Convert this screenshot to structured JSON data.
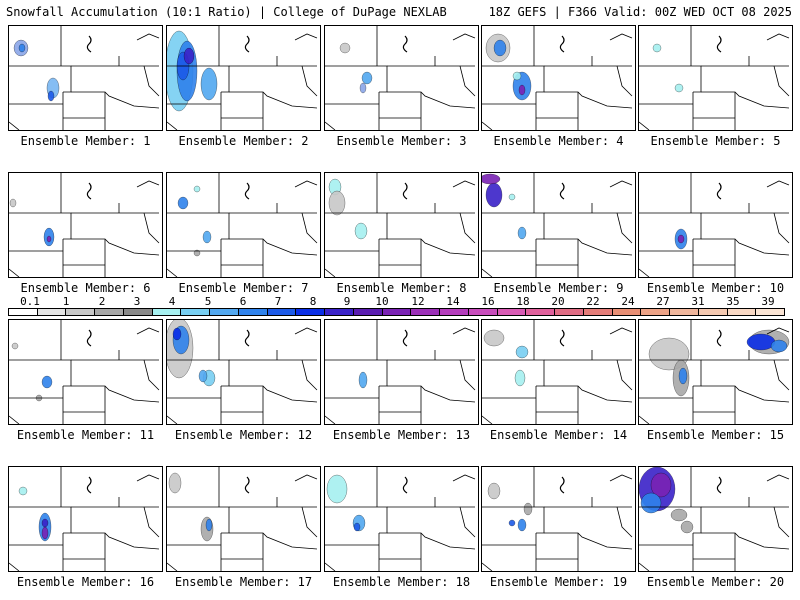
{
  "header": {
    "title": "Snowfall Accumulation (10:1 Ratio) | College of DuPage NEXLAB",
    "run_info": "18Z GEFS | F366 Valid: 00Z WED OCT 08 2025"
  },
  "colorbar": {
    "labels": [
      "0.1",
      "1",
      "2",
      "3",
      "4",
      "5",
      "6",
      "7",
      "8",
      "9",
      "10",
      "12",
      "14",
      "16",
      "18",
      "20",
      "22",
      "24",
      "27",
      "31",
      "35",
      "39"
    ],
    "colors": [
      "#ffffff",
      "#e4e4e4",
      "#c8c8c8",
      "#a8a8a8",
      "#8a8a8a",
      "#a6f0f0",
      "#78cff2",
      "#52a8f0",
      "#2f82ec",
      "#1c5ae8",
      "#0a2ee6",
      "#3a22c8",
      "#5a1cb0",
      "#7a22b4",
      "#9c30b8",
      "#b43cbc",
      "#c84cbc",
      "#d85ab4",
      "#e0609c",
      "#e06c84",
      "#e47c78",
      "#e88e74",
      "#eca286",
      "#f0b69c",
      "#f4c8b0",
      "#f8d8c4",
      "#fae4d4"
    ]
  },
  "panels": [
    {
      "label": "Ensemble Member: 1"
    },
    {
      "label": "Ensemble Member: 2"
    },
    {
      "label": "Ensemble Member: 3"
    },
    {
      "label": "Ensemble Member: 4"
    },
    {
      "label": "Ensemble Member: 5"
    },
    {
      "label": "Ensemble Member: 6"
    },
    {
      "label": "Ensemble Member: 7"
    },
    {
      "label": "Ensemble Member: 8"
    },
    {
      "label": "Ensemble Member: 9"
    },
    {
      "label": "Ensemble Member: 10"
    },
    {
      "label": "Ensemble Member: 11"
    },
    {
      "label": "Ensemble Member: 12"
    },
    {
      "label": "Ensemble Member: 13"
    },
    {
      "label": "Ensemble Member: 14"
    },
    {
      "label": "Ensemble Member: 15"
    },
    {
      "label": "Ensemble Member: 16"
    },
    {
      "label": "Ensemble Member: 17"
    },
    {
      "label": "Ensemble Member: 18"
    },
    {
      "label": "Ensemble Member: 19"
    },
    {
      "label": "Ensemble Member: 20"
    }
  ]
}
